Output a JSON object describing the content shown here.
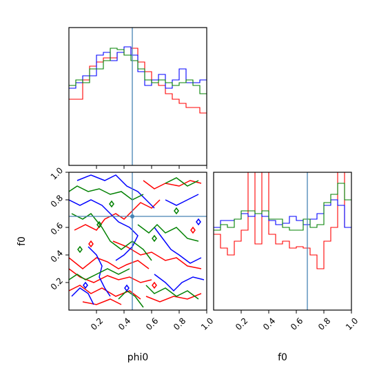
{
  "chart_data": {
    "type": "corner",
    "parameters": [
      "phi0",
      "f0"
    ],
    "truth": {
      "phi0": 0.46,
      "f0": 0.68
    },
    "truth_color": "#4682b4",
    "series_colors": [
      "#ff0000",
      "#0000ff",
      "#008000"
    ],
    "x_ticks": [
      "0.2",
      "0.4",
      "0.6",
      "0.8",
      "1.0"
    ],
    "y_ticks": [
      "0.2",
      "0.4",
      "0.6",
      "0.8",
      "1.0"
    ],
    "hist_bins": [
      0.0,
      0.05,
      0.1,
      0.15,
      0.2,
      0.25,
      0.3,
      0.35,
      0.4,
      0.45,
      0.5,
      0.55,
      0.6,
      0.65,
      0.7,
      0.75,
      0.8,
      0.85,
      0.9,
      0.95,
      1.0
    ],
    "hist_phi0": {
      "ymax": 1.0,
      "series": [
        {
          "values": [
            0.48,
            0.48,
            0.62,
            0.72,
            0.75,
            0.78,
            0.78,
            0.82,
            0.8,
            0.85,
            0.75,
            0.68,
            0.6,
            0.58,
            0.52,
            0.48,
            0.45,
            0.42,
            0.42,
            0.38
          ]
        },
        {
          "values": [
            0.56,
            0.6,
            0.65,
            0.65,
            0.8,
            0.82,
            0.76,
            0.82,
            0.86,
            0.8,
            0.68,
            0.58,
            0.62,
            0.66,
            0.56,
            0.62,
            0.7,
            0.6,
            0.6,
            0.62
          ]
        },
        {
          "values": [
            0.58,
            0.62,
            0.6,
            0.7,
            0.7,
            0.76,
            0.85,
            0.84,
            0.8,
            0.76,
            0.7,
            0.62,
            0.6,
            0.62,
            0.6,
            0.58,
            0.6,
            0.62,
            0.58,
            0.52
          ]
        }
      ]
    },
    "hist_f0": {
      "ymax": 1.0,
      "series": [
        {
          "values": [
            0.55,
            0.45,
            0.4,
            0.5,
            0.58,
            1.0,
            0.48,
            1.0,
            0.55,
            0.48,
            0.5,
            0.45,
            0.46,
            0.45,
            0.4,
            0.3,
            0.5,
            0.6,
            1.0,
            0.6
          ]
        },
        {
          "values": [
            0.6,
            0.65,
            0.65,
            0.66,
            0.7,
            0.68,
            0.7,
            0.68,
            0.65,
            0.62,
            0.63,
            0.68,
            0.65,
            0.62,
            0.66,
            0.7,
            0.76,
            0.8,
            0.76,
            0.6
          ]
        },
        {
          "values": [
            0.58,
            0.62,
            0.6,
            0.66,
            0.72,
            0.72,
            0.7,
            0.72,
            0.66,
            0.66,
            0.6,
            0.58,
            0.58,
            0.66,
            0.6,
            0.62,
            0.78,
            0.84,
            0.92,
            0.8
          ]
        }
      ]
    },
    "contours": [
      {
        "series": 0,
        "points": [
          [
            0.0,
            0.38
          ],
          [
            0.05,
            0.34
          ],
          [
            0.1,
            0.3
          ],
          [
            0.15,
            0.34
          ],
          [
            0.2,
            0.38
          ],
          [
            0.28,
            0.35
          ],
          [
            0.36,
            0.3
          ],
          [
            0.42,
            0.33
          ],
          [
            0.5,
            0.36
          ],
          [
            0.58,
            0.3
          ]
        ]
      },
      {
        "series": 0,
        "points": [
          [
            0.0,
            0.3
          ],
          [
            0.08,
            0.24
          ],
          [
            0.18,
            0.2
          ],
          [
            0.28,
            0.25
          ],
          [
            0.36,
            0.22
          ],
          [
            0.44,
            0.24
          ],
          [
            0.52,
            0.2
          ],
          [
            0.6,
            0.22
          ]
        ]
      },
      {
        "series": 0,
        "points": [
          [
            0.0,
            0.14
          ],
          [
            0.08,
            0.18
          ],
          [
            0.16,
            0.12
          ],
          [
            0.24,
            0.16
          ],
          [
            0.34,
            0.1
          ],
          [
            0.44,
            0.14
          ],
          [
            0.52,
            0.08
          ]
        ]
      },
      {
        "series": 0,
        "points": [
          [
            0.04,
            0.58
          ],
          [
            0.12,
            0.62
          ],
          [
            0.2,
            0.58
          ],
          [
            0.26,
            0.66
          ],
          [
            0.34,
            0.7
          ],
          [
            0.4,
            0.66
          ],
          [
            0.46,
            0.72
          ],
          [
            0.52,
            0.78
          ],
          [
            0.6,
            0.74
          ],
          [
            0.66,
            0.8
          ]
        ]
      },
      {
        "series": 0,
        "points": [
          [
            0.32,
            0.5
          ],
          [
            0.42,
            0.46
          ],
          [
            0.52,
            0.4
          ],
          [
            0.6,
            0.42
          ],
          [
            0.7,
            0.36
          ],
          [
            0.78,
            0.38
          ],
          [
            0.86,
            0.32
          ],
          [
            0.96,
            0.3
          ]
        ]
      },
      {
        "series": 0,
        "points": [
          [
            0.54,
            0.94
          ],
          [
            0.62,
            0.88
          ],
          [
            0.7,
            0.92
          ],
          [
            0.8,
            0.9
          ],
          [
            0.88,
            0.94
          ],
          [
            0.96,
            0.92
          ]
        ]
      },
      {
        "series": 0,
        "points": [
          [
            0.56,
            0.1
          ],
          [
            0.66,
            0.06
          ],
          [
            0.76,
            0.1
          ],
          [
            0.86,
            0.08
          ],
          [
            0.96,
            0.12
          ]
        ]
      },
      {
        "series": 0,
        "points": [
          [
            0.1,
            0.06
          ],
          [
            0.2,
            0.04
          ],
          [
            0.3,
            0.08
          ],
          [
            0.38,
            0.04
          ]
        ]
      },
      {
        "series": 1,
        "points": [
          [
            0.0,
            0.8
          ],
          [
            0.08,
            0.76
          ],
          [
            0.16,
            0.8
          ],
          [
            0.24,
            0.76
          ],
          [
            0.3,
            0.7
          ],
          [
            0.36,
            0.64
          ],
          [
            0.44,
            0.6
          ],
          [
            0.5,
            0.54
          ],
          [
            0.46,
            0.46
          ],
          [
            0.4,
            0.4
          ],
          [
            0.34,
            0.36
          ]
        ]
      },
      {
        "series": 1,
        "points": [
          [
            0.06,
            0.94
          ],
          [
            0.16,
            0.98
          ],
          [
            0.26,
            0.94
          ],
          [
            0.34,
            0.98
          ],
          [
            0.42,
            0.9
          ],
          [
            0.5,
            0.86
          ],
          [
            0.56,
            0.8
          ],
          [
            0.62,
            0.74
          ]
        ]
      },
      {
        "series": 1,
        "points": [
          [
            0.62,
            0.6
          ],
          [
            0.68,
            0.52
          ],
          [
            0.74,
            0.44
          ],
          [
            0.8,
            0.4
          ],
          [
            0.88,
            0.34
          ],
          [
            0.96,
            0.38
          ]
        ]
      },
      {
        "series": 1,
        "points": [
          [
            0.14,
            0.46
          ],
          [
            0.2,
            0.4
          ],
          [
            0.24,
            0.32
          ],
          [
            0.22,
            0.24
          ],
          [
            0.26,
            0.16
          ],
          [
            0.3,
            0.1
          ]
        ]
      },
      {
        "series": 1,
        "points": [
          [
            0.62,
            0.26
          ],
          [
            0.7,
            0.2
          ],
          [
            0.76,
            0.14
          ],
          [
            0.82,
            0.2
          ],
          [
            0.9,
            0.24
          ],
          [
            0.98,
            0.22
          ]
        ]
      },
      {
        "series": 1,
        "points": [
          [
            0.7,
            0.8
          ],
          [
            0.78,
            0.76
          ],
          [
            0.86,
            0.8
          ],
          [
            0.94,
            0.84
          ]
        ]
      },
      {
        "series": 1,
        "points": [
          [
            0.02,
            0.1
          ],
          [
            0.08,
            0.16
          ],
          [
            0.14,
            0.12
          ],
          [
            0.18,
            0.04
          ]
        ]
      },
      {
        "series": 2,
        "points": [
          [
            0.0,
            0.86
          ],
          [
            0.06,
            0.9
          ],
          [
            0.14,
            0.86
          ],
          [
            0.22,
            0.88
          ],
          [
            0.3,
            0.84
          ],
          [
            0.38,
            0.86
          ],
          [
            0.46,
            0.8
          ],
          [
            0.54,
            0.84
          ]
        ]
      },
      {
        "series": 2,
        "points": [
          [
            0.02,
            0.7
          ],
          [
            0.1,
            0.66
          ],
          [
            0.16,
            0.7
          ],
          [
            0.24,
            0.6
          ],
          [
            0.3,
            0.5
          ],
          [
            0.38,
            0.44
          ],
          [
            0.46,
            0.5
          ],
          [
            0.54,
            0.44
          ],
          [
            0.6,
            0.36
          ]
        ]
      },
      {
        "series": 2,
        "points": [
          [
            0.0,
            0.22
          ],
          [
            0.06,
            0.26
          ],
          [
            0.12,
            0.22
          ],
          [
            0.2,
            0.26
          ],
          [
            0.28,
            0.3
          ],
          [
            0.36,
            0.26
          ],
          [
            0.44,
            0.3
          ]
        ]
      },
      {
        "series": 2,
        "points": [
          [
            0.5,
            0.62
          ],
          [
            0.58,
            0.56
          ],
          [
            0.64,
            0.62
          ],
          [
            0.7,
            0.56
          ],
          [
            0.78,
            0.6
          ],
          [
            0.86,
            0.52
          ],
          [
            0.94,
            0.5
          ]
        ]
      },
      {
        "series": 2,
        "points": [
          [
            0.56,
            0.18
          ],
          [
            0.62,
            0.12
          ],
          [
            0.7,
            0.16
          ],
          [
            0.78,
            0.1
          ],
          [
            0.86,
            0.14
          ],
          [
            0.94,
            0.08
          ]
        ]
      },
      {
        "series": 2,
        "points": [
          [
            0.36,
            0.08
          ],
          [
            0.42,
            0.14
          ],
          [
            0.48,
            0.1
          ],
          [
            0.54,
            0.02
          ]
        ]
      },
      {
        "series": 2,
        "points": [
          [
            0.7,
            0.92
          ],
          [
            0.78,
            0.96
          ],
          [
            0.86,
            0.9
          ],
          [
            0.94,
            0.94
          ]
        ]
      }
    ],
    "contour_blobs": [
      {
        "series": 2,
        "x": 0.31,
        "y": 0.77
      },
      {
        "series": 2,
        "x": 0.22,
        "y": 0.62
      },
      {
        "series": 2,
        "x": 0.62,
        "y": 0.52
      },
      {
        "series": 2,
        "x": 0.78,
        "y": 0.72
      },
      {
        "series": 2,
        "x": 0.08,
        "y": 0.44
      },
      {
        "series": 0,
        "x": 0.16,
        "y": 0.48
      },
      {
        "series": 0,
        "x": 0.9,
        "y": 0.58
      },
      {
        "series": 0,
        "x": 0.62,
        "y": 0.18
      },
      {
        "series": 1,
        "x": 0.42,
        "y": 0.16
      },
      {
        "series": 1,
        "x": 0.94,
        "y": 0.64
      },
      {
        "series": 1,
        "x": 0.12,
        "y": 0.18
      }
    ],
    "xlabel_phi0": "phi0",
    "xlabel_f0": "f0",
    "ylabel_f0": "f0"
  }
}
